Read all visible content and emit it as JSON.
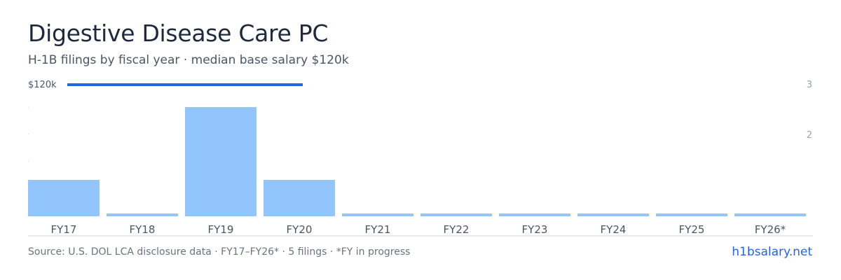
{
  "title": "Digestive Disease Care PC",
  "subtitle": "H-1B filings by fiscal year · median base salary $120k",
  "footer": {
    "source": "Source: U.S. DOL LCA disclosure data · FY17–FY26* · 5 filings · *FY in progress",
    "brand": "h1bsalary.net"
  },
  "colors": {
    "bar": "#93c5fd",
    "salary_line": "#2563eb",
    "axis": "#d1d5db",
    "tick_text": "#4b5563",
    "right_tick_text": "#9ca3af"
  },
  "chart_data": {
    "type": "bar",
    "categories": [
      "FY17",
      "FY18",
      "FY19",
      "FY20",
      "FY21",
      "FY22",
      "FY23",
      "FY24",
      "FY25",
      "FY26*"
    ],
    "values": [
      1,
      0,
      3,
      1,
      0,
      0,
      0,
      0,
      0,
      0
    ],
    "ylim": [
      0,
      3
    ],
    "right_ticks": [
      "3",
      "2"
    ],
    "salary_label": "$120k",
    "salary_line_years": [
      "FY17",
      "FY19"
    ],
    "grid": false
  }
}
